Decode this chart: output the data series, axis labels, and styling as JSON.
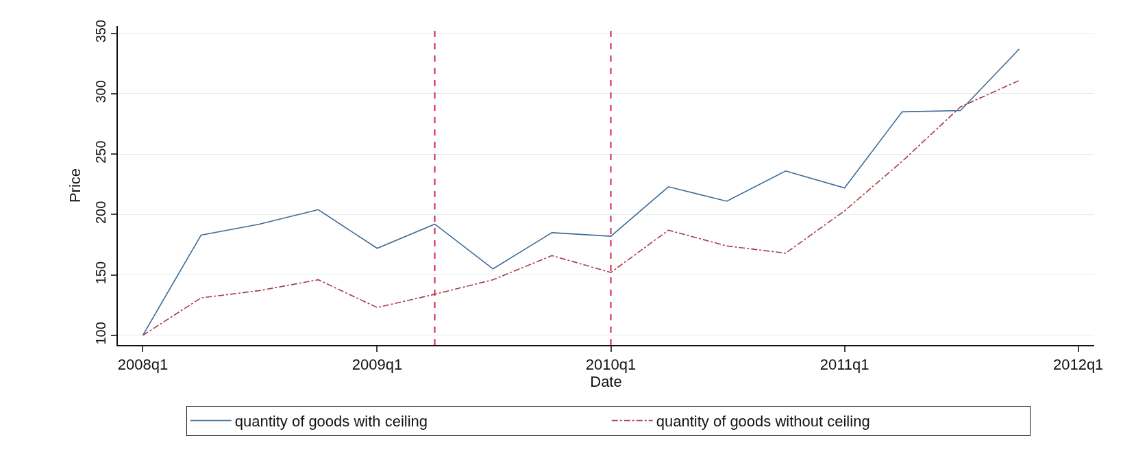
{
  "chart_data": {
    "type": "line",
    "xlabel": "Date",
    "ylabel": "Price",
    "x": [
      "2008-01",
      "2008-04",
      "2008-07",
      "2008-10",
      "2009-01",
      "2009-04",
      "2009-07",
      "2009-10",
      "2010-01",
      "2010-04",
      "2010-07",
      "2010-10",
      "2011-01",
      "2011-04",
      "2011-07",
      "2011-10"
    ],
    "series": [
      {
        "name": "quantity of goods with ceiling",
        "color": "#3d6a96",
        "line_style": "solid",
        "values": [
          100,
          183,
          192,
          204,
          172,
          192,
          155,
          185,
          182,
          223,
          211,
          236,
          222,
          285,
          286,
          337
        ]
      },
      {
        "name": "quantity of goods without ceiling",
        "color": "#a83a44",
        "line_style": "dashed",
        "values": [
          100,
          131,
          137,
          146,
          123,
          134,
          146,
          166,
          152,
          187,
          174,
          168,
          203,
          244,
          289,
          311
        ]
      }
    ],
    "xlim": [
      "2007-11-23",
      "2012-01-26"
    ],
    "xticks": [
      {
        "value": "2008-01",
        "label": "2008q1"
      },
      {
        "value": "2009-01",
        "label": "2009q1"
      },
      {
        "value": "2010-01",
        "label": "2010q1"
      },
      {
        "value": "2011-01",
        "label": "2011q1"
      },
      {
        "value": "2012-01",
        "label": "2012q1"
      }
    ],
    "ylim": [
      92,
      356
    ],
    "yticks": [
      100,
      150,
      200,
      250,
      300,
      350
    ],
    "ref_lines": [
      {
        "axis": "x",
        "value": "2009-04",
        "color": "#d6224a",
        "line_style": "dashed"
      },
      {
        "axis": "x",
        "value": "2010-01",
        "color": "#d6224a",
        "line_style": "dashed"
      }
    ],
    "grid": "y",
    "legend": "bottom",
    "marker": "none"
  }
}
